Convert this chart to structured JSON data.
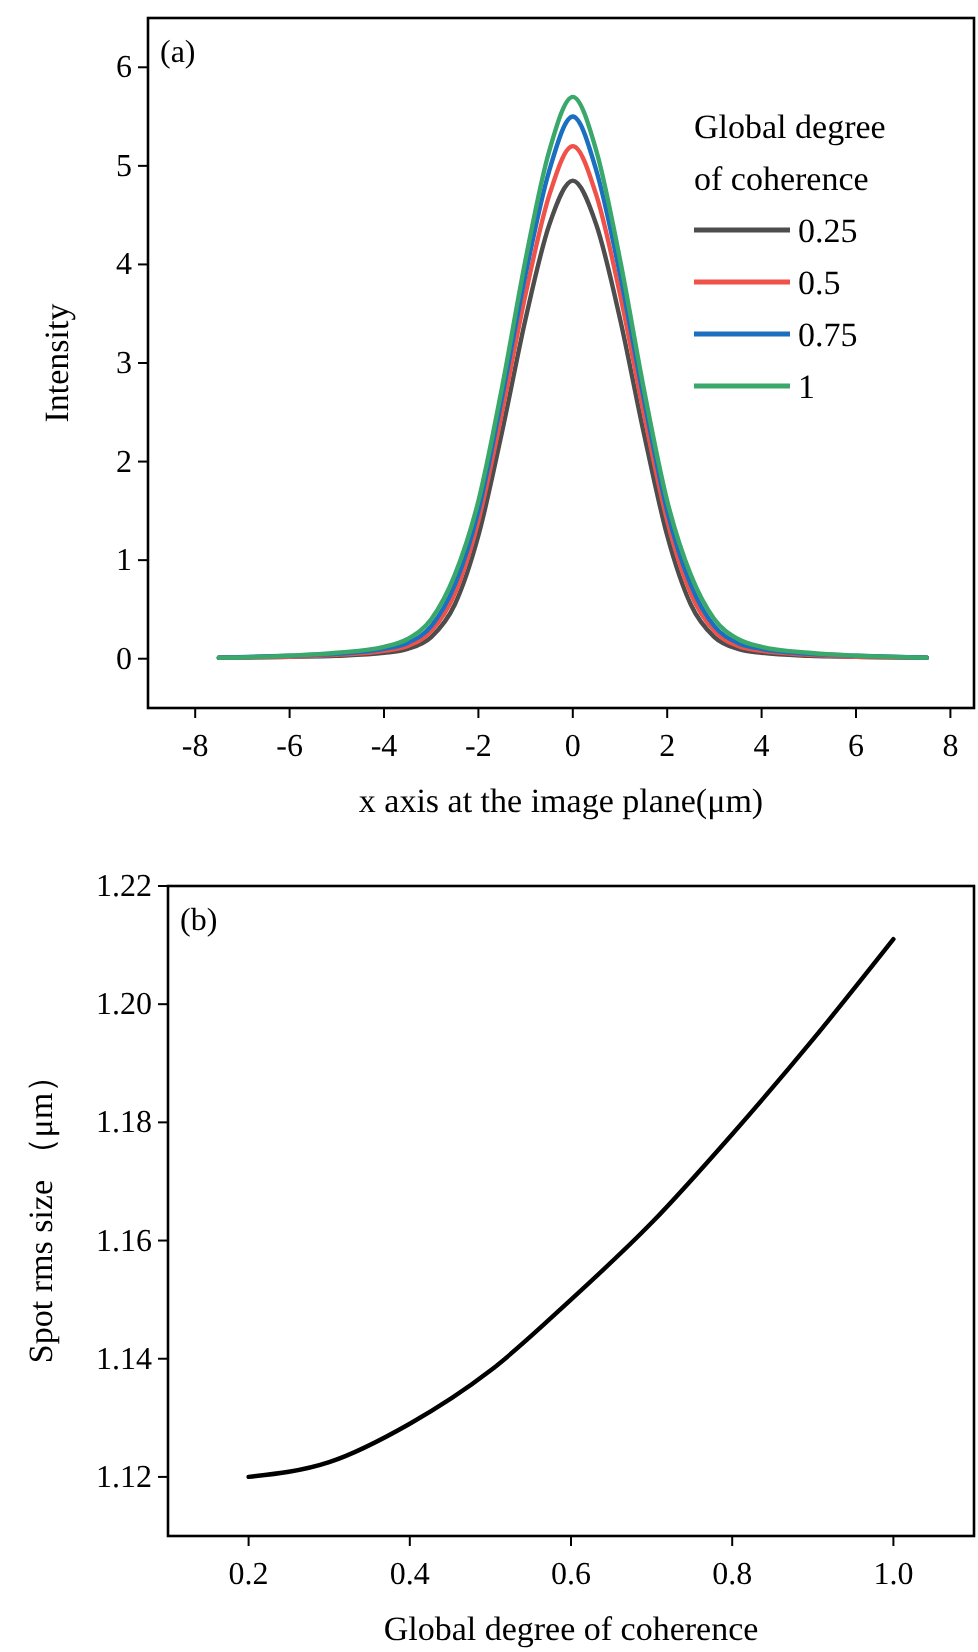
{
  "chart_data": [
    {
      "type": "line",
      "xlabel": "x axis at the image plane(μm)",
      "ylabel": "Intensity",
      "legend_title": "Global degree of coherence",
      "legend": "top right",
      "annotations": [
        "(a)"
      ],
      "x": [
        -7.5,
        -6,
        -5,
        -4,
        -3.5,
        -3,
        -2.5,
        -2,
        -1.5,
        -1,
        -0.5,
        0,
        0.5,
        1,
        1.5,
        2,
        2.5,
        3,
        3.5,
        4,
        5,
        6,
        7.5
      ],
      "xlim": [
        -9,
        8.5
      ],
      "xticks": [
        -8,
        -6,
        -4,
        -2,
        0,
        2,
        4,
        6,
        8
      ],
      "ylim": [
        -0.5,
        6.5
      ],
      "yticks": [
        0,
        1,
        2,
        3,
        4,
        5,
        6
      ],
      "series": [
        {
          "name": "0.25",
          "color": "#4d4d4d",
          "values": [
            0.01,
            0.02,
            0.03,
            0.06,
            0.1,
            0.22,
            0.55,
            1.25,
            2.3,
            3.45,
            4.4,
            4.85,
            4.4,
            3.45,
            2.3,
            1.25,
            0.55,
            0.22,
            0.1,
            0.06,
            0.03,
            0.02,
            0.01
          ]
        },
        {
          "name": "0.5",
          "color": "#f0524a",
          "values": [
            0.01,
            0.02,
            0.04,
            0.08,
            0.13,
            0.28,
            0.66,
            1.4,
            2.5,
            3.7,
            4.7,
            5.2,
            4.7,
            3.7,
            2.5,
            1.4,
            0.66,
            0.28,
            0.13,
            0.08,
            0.04,
            0.02,
            0.01
          ]
        },
        {
          "name": "0.75",
          "color": "#1a6fc0",
          "values": [
            0.01,
            0.03,
            0.05,
            0.1,
            0.16,
            0.33,
            0.75,
            1.5,
            2.65,
            3.9,
            4.95,
            5.5,
            4.95,
            3.9,
            2.65,
            1.5,
            0.75,
            0.33,
            0.16,
            0.1,
            0.05,
            0.03,
            0.01
          ]
        },
        {
          "name": "1",
          "color": "#3aa86a",
          "values": [
            0.01,
            0.03,
            0.06,
            0.12,
            0.2,
            0.4,
            0.85,
            1.6,
            2.75,
            4.05,
            5.15,
            5.7,
            5.15,
            4.05,
            2.75,
            1.6,
            0.85,
            0.4,
            0.2,
            0.12,
            0.06,
            0.03,
            0.01
          ]
        }
      ]
    },
    {
      "type": "line",
      "xlabel": "Global degree of coherence",
      "ylabel": "Spot rms size （μm）",
      "annotations": [
        "(b)"
      ],
      "x": [
        0.2,
        0.3,
        0.4,
        0.5,
        0.6,
        0.7,
        0.8,
        0.9,
        1.0
      ],
      "xlim": [
        0.1,
        1.1
      ],
      "xticks": [
        0.2,
        0.4,
        0.6,
        0.8,
        {
          "value": 1.0,
          "label": "1.0"
        }
      ],
      "ylim": [
        1.11,
        1.22
      ],
      "yticks": [
        1.12,
        1.14,
        1.16,
        1.18,
        {
          "value": 1.2,
          "label": "1.20"
        },
        1.22
      ],
      "series": [
        {
          "color": "#000000",
          "values": [
            1.12,
            1.1225,
            1.129,
            1.138,
            1.15,
            1.163,
            1.178,
            1.194,
            1.211
          ]
        }
      ]
    }
  ]
}
